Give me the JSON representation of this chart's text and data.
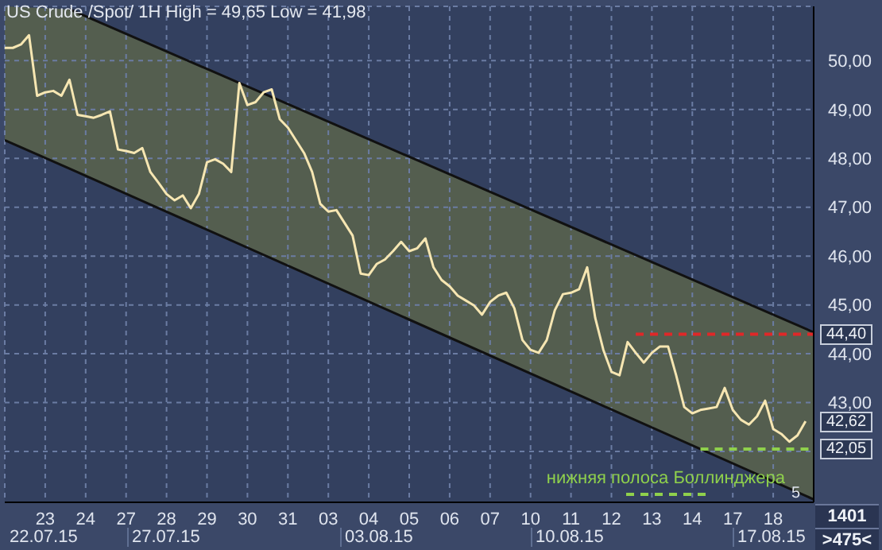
{
  "chart_data": {
    "type": "line",
    "title": "US Crude /Spot/ 1H High = 49,65 Low = 41,98",
    "categories": [
      null,
      null,
      null,
      null,
      null,
      "23",
      null,
      null,
      null,
      null,
      "24",
      null,
      null,
      null,
      null,
      "27",
      null,
      null,
      null,
      null,
      "28",
      null,
      null,
      null,
      null,
      "29",
      null,
      null,
      null,
      null,
      "30",
      null,
      null,
      null,
      null,
      "31",
      null,
      null,
      null,
      null,
      "03",
      null,
      null,
      null,
      null,
      "04",
      null,
      null,
      null,
      null,
      "05",
      null,
      null,
      null,
      null,
      "06",
      null,
      null,
      null,
      null,
      "07",
      null,
      null,
      null,
      null,
      "10",
      null,
      null,
      null,
      null,
      "11",
      null,
      null,
      null,
      null,
      "12",
      null,
      null,
      null,
      null,
      "13",
      null,
      null,
      null,
      null,
      "14",
      null,
      null,
      null,
      null,
      "17",
      null,
      null,
      null,
      null,
      "18",
      null,
      null,
      null,
      null,
      null
    ],
    "series": [
      {
        "color": "#111111",
        "values": [
          null,
          null,
          null,
          null,
          null,
          null,
          null,
          null,
          51.05,
          null,
          null,
          null,
          null,
          null,
          null,
          null,
          null,
          null,
          null,
          null,
          null,
          null,
          null,
          null,
          null,
          null,
          null,
          null,
          null,
          null,
          null,
          null,
          null,
          null,
          null,
          null,
          null,
          null,
          null,
          null,
          null,
          null,
          null,
          null,
          null,
          null,
          null,
          null,
          null,
          null,
          null,
          null,
          null,
          null,
          null,
          null,
          null,
          null,
          null,
          null,
          null,
          null,
          null,
          null,
          null,
          null,
          null,
          null,
          null,
          null,
          null,
          null,
          null,
          null,
          null,
          null,
          null,
          null,
          null,
          null,
          null,
          null,
          null,
          null,
          null,
          null,
          null,
          null,
          null,
          null,
          null,
          null,
          null,
          null,
          null,
          null,
          null,
          null,
          null,
          null,
          44.44
        ]
      },
      {
        "color": "#111111",
        "values": [
          48.37,
          null,
          null,
          null,
          null,
          null,
          null,
          null,
          47.79,
          null,
          null,
          null,
          null,
          null,
          null,
          null,
          null,
          null,
          null,
          null,
          null,
          null,
          null,
          null,
          null,
          null,
          null,
          null,
          null,
          null,
          null,
          null,
          null,
          null,
          null,
          null,
          null,
          null,
          null,
          null,
          null,
          null,
          null,
          null,
          null,
          null,
          null,
          null,
          null,
          null,
          null,
          null,
          null,
          null,
          null,
          null,
          null,
          null,
          null,
          null,
          null,
          null,
          null,
          null,
          null,
          null,
          null,
          null,
          null,
          null,
          null,
          null,
          null,
          null,
          null,
          null,
          null,
          null,
          null,
          null,
          null,
          null,
          null,
          null,
          null,
          null,
          null,
          null,
          null,
          null,
          null,
          null,
          null,
          null,
          null,
          null,
          null,
          null,
          null,
          null,
          41.02
        ]
      },
      {
        "color": "#f6e6b2",
        "values": [
          50.26,
          50.26,
          50.33,
          50.52,
          49.28,
          49.35,
          49.38,
          49.28,
          49.61,
          48.89,
          48.86,
          48.83,
          48.89,
          48.96,
          48.18,
          48.15,
          48.11,
          48.21,
          47.72,
          47.5,
          47.27,
          47.14,
          47.24,
          46.98,
          47.27,
          47.92,
          47.98,
          47.89,
          47.72,
          49.54,
          49.09,
          49.15,
          49.35,
          49.41,
          48.8,
          48.63,
          48.37,
          48.11,
          47.72,
          47.07,
          46.91,
          46.94,
          46.68,
          46.42,
          45.64,
          45.61,
          45.84,
          45.93,
          46.1,
          46.29,
          46.1,
          46.16,
          46.36,
          45.77,
          45.51,
          45.38,
          45.19,
          45.09,
          44.99,
          44.8,
          45.06,
          45.19,
          45.25,
          44.93,
          44.28,
          44.08,
          44.02,
          44.28,
          44.89,
          45.22,
          45.25,
          45.32,
          45.77,
          44.73,
          44.08,
          43.63,
          43.56,
          44.24,
          44.02,
          43.82,
          44.02,
          44.15,
          44.15,
          43.56,
          42.91,
          42.78,
          42.85,
          42.88,
          42.91,
          43.3,
          42.85,
          42.65,
          42.55,
          42.72,
          43.04,
          42.46,
          42.36,
          42.2,
          42.33,
          42.62,
          null
        ],
        "value_labels": [
          null,
          null,
          null,
          null,
          null,
          null,
          null,
          null,
          null,
          null,
          null,
          null,
          null,
          null,
          null,
          null,
          null,
          null,
          null,
          null,
          null,
          null,
          null,
          null,
          null,
          null,
          null,
          null,
          null,
          null,
          null,
          null,
          null,
          null,
          null,
          null,
          null,
          null,
          null,
          null,
          null,
          null,
          null,
          null,
          null,
          null,
          null,
          null,
          null,
          null,
          null,
          null,
          null,
          null,
          null,
          null,
          null,
          null,
          null,
          null,
          null,
          null,
          null,
          null,
          null,
          null,
          null,
          null,
          null,
          null,
          null,
          null,
          null,
          null,
          null,
          null,
          null,
          null,
          null,
          null,
          null,
          null,
          null,
          null,
          null,
          null,
          null,
          null,
          null,
          null,
          null,
          null,
          null,
          null,
          null,
          null,
          null,
          null,
          null,
          "42,62",
          null
        ]
      },
      {
        "color": "#e02828",
        "line_style": "dashed",
        "values": [
          null,
          null,
          null,
          null,
          null,
          null,
          null,
          null,
          null,
          null,
          null,
          null,
          null,
          null,
          null,
          null,
          null,
          null,
          null,
          null,
          null,
          null,
          null,
          null,
          null,
          null,
          null,
          null,
          null,
          null,
          null,
          null,
          null,
          null,
          null,
          null,
          null,
          null,
          null,
          null,
          null,
          null,
          null,
          null,
          null,
          null,
          null,
          null,
          null,
          null,
          null,
          null,
          null,
          null,
          null,
          null,
          null,
          null,
          null,
          null,
          null,
          null,
          null,
          null,
          null,
          null,
          null,
          null,
          null,
          null,
          null,
          null,
          null,
          null,
          null,
          null,
          null,
          null,
          44.4,
          null,
          null,
          null,
          null,
          null,
          null,
          null,
          null,
          null,
          null,
          null,
          null,
          null,
          null,
          null,
          null,
          null,
          null,
          null,
          null,
          null,
          44.4
        ],
        "value_labels": [
          null,
          null,
          null,
          null,
          null,
          null,
          null,
          null,
          null,
          null,
          null,
          null,
          null,
          null,
          null,
          null,
          null,
          null,
          null,
          null,
          null,
          null,
          null,
          null,
          null,
          null,
          null,
          null,
          null,
          null,
          null,
          null,
          null,
          null,
          null,
          null,
          null,
          null,
          null,
          null,
          null,
          null,
          null,
          null,
          null,
          null,
          null,
          null,
          null,
          null,
          null,
          null,
          null,
          null,
          null,
          null,
          null,
          null,
          null,
          null,
          null,
          null,
          null,
          null,
          null,
          null,
          null,
          null,
          null,
          null,
          null,
          null,
          null,
          null,
          null,
          null,
          null,
          null,
          null,
          null,
          null,
          null,
          null,
          null,
          null,
          null,
          null,
          null,
          null,
          null,
          null,
          null,
          null,
          null,
          null,
          null,
          null,
          null,
          null,
          null,
          "44,40"
        ]
      },
      {
        "name": "нижняя полоса Боллинджера",
        "color": "#8fd04c",
        "line_style": "dashed",
        "values": [
          null,
          null,
          null,
          null,
          null,
          null,
          null,
          null,
          null,
          null,
          null,
          null,
          null,
          null,
          null,
          null,
          null,
          null,
          null,
          null,
          null,
          null,
          null,
          null,
          null,
          null,
          null,
          null,
          null,
          null,
          null,
          null,
          null,
          null,
          null,
          null,
          null,
          null,
          null,
          null,
          null,
          null,
          null,
          null,
          null,
          null,
          null,
          null,
          null,
          null,
          null,
          null,
          null,
          null,
          null,
          null,
          null,
          null,
          null,
          null,
          null,
          null,
          null,
          null,
          null,
          null,
          null,
          null,
          null,
          null,
          null,
          null,
          null,
          null,
          null,
          null,
          null,
          null,
          null,
          null,
          null,
          null,
          null,
          null,
          null,
          null,
          42.05,
          null,
          null,
          null,
          null,
          null,
          null,
          null,
          null,
          null,
          null,
          null,
          null,
          null,
          42.05
        ],
        "value_labels": [
          null,
          null,
          null,
          null,
          null,
          null,
          null,
          null,
          null,
          null,
          null,
          null,
          null,
          null,
          null,
          null,
          null,
          null,
          null,
          null,
          null,
          null,
          null,
          null,
          null,
          null,
          null,
          null,
          null,
          null,
          null,
          null,
          null,
          null,
          null,
          null,
          null,
          null,
          null,
          null,
          null,
          null,
          null,
          null,
          null,
          null,
          null,
          null,
          null,
          null,
          null,
          null,
          null,
          null,
          null,
          null,
          null,
          null,
          null,
          null,
          null,
          null,
          null,
          null,
          null,
          null,
          null,
          null,
          null,
          null,
          null,
          null,
          null,
          null,
          null,
          null,
          null,
          null,
          null,
          null,
          null,
          null,
          null,
          null,
          null,
          null,
          null,
          null,
          null,
          null,
          null,
          null,
          null,
          null,
          null,
          null,
          null,
          null,
          null,
          null,
          "42,05"
        ]
      }
    ],
    "ylim": [
      40.96,
      51.11
    ],
    "yticks": [
      {
        "value": 42,
        "label": null
      },
      {
        "value": 43,
        "label": "43,00"
      },
      {
        "value": 44,
        "label": "44,00"
      },
      {
        "value": 45,
        "label": "45,00"
      },
      {
        "value": 46,
        "label": "46,00"
      },
      {
        "value": 47,
        "label": "47,00"
      },
      {
        "value": 48,
        "label": "48,00"
      },
      {
        "value": 49,
        "label": "49,00"
      },
      {
        "value": 50,
        "label": "50,00"
      }
    ],
    "grid": true,
    "legend": "bottom right",
    "annotations": [
      "22.07.15",
      "27.07.15",
      "03.08.15",
      "10.08.15",
      "17.08.15",
      "1401",
      ">475<",
      "5"
    ]
  }
}
